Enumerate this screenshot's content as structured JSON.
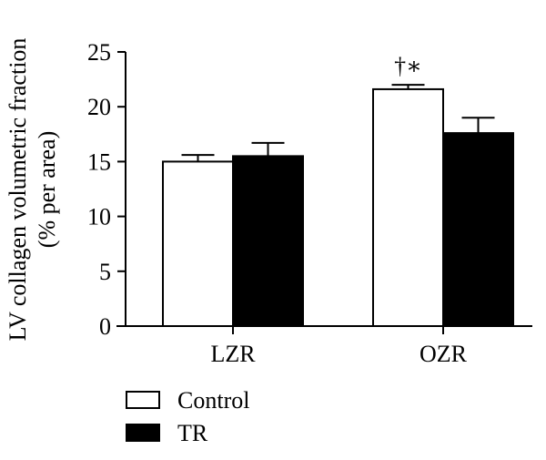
{
  "chart_data": {
    "type": "bar",
    "ylabel_line1": "LV collagen volumetric fraction",
    "ylabel_line2": "(% per area)",
    "xlabel": "",
    "ylim": [
      0,
      25
    ],
    "yticks": [
      0,
      5,
      10,
      15,
      20,
      25
    ],
    "categories": [
      "LZR",
      "OZR"
    ],
    "series": [
      {
        "name": "Control",
        "fill": "#ffffff",
        "values": [
          15.0,
          21.6
        ],
        "errors": [
          0.6,
          0.4
        ]
      },
      {
        "name": "TR",
        "fill": "#000000",
        "values": [
          15.5,
          17.6
        ],
        "errors": [
          1.2,
          1.4
        ]
      }
    ],
    "annotations": [
      {
        "category": "OZR",
        "series": "Control",
        "text": "†∗"
      }
    ],
    "legend_position": "bottom-left",
    "grid": false
  }
}
